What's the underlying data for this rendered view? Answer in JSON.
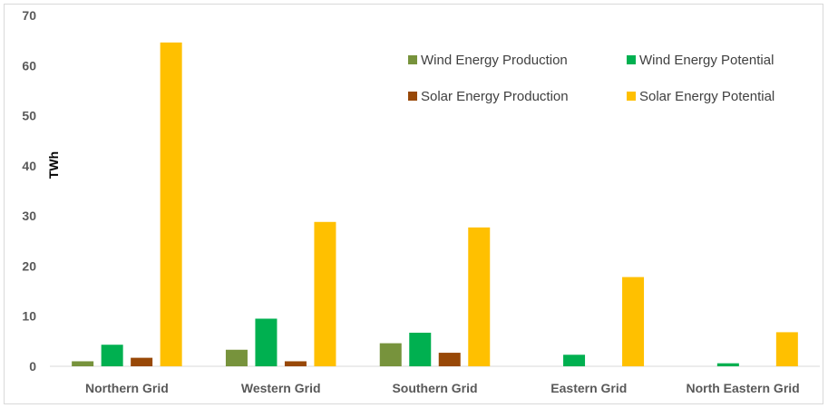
{
  "chart_data": {
    "type": "bar",
    "title": "",
    "xlabel": "",
    "ylabel": "TWh",
    "ylim": [
      0,
      70
    ],
    "yticks": [
      0,
      10,
      20,
      30,
      40,
      50,
      60,
      70
    ],
    "grid": false,
    "legend_position": "top-right",
    "categories": [
      "Northern Grid",
      "Western Grid",
      "Southern Grid",
      "Eastern Grid",
      "North Eastern Grid"
    ],
    "series": [
      {
        "name": "Wind Energy Production",
        "color": "#77933c",
        "values": [
          1.0,
          3.3,
          4.6,
          0,
          0
        ]
      },
      {
        "name": "Wind Energy Potential",
        "color": "#00b050",
        "values": [
          4.3,
          9.5,
          6.7,
          2.3,
          0.6
        ]
      },
      {
        "name": "Solar Energy Production",
        "color": "#984807",
        "values": [
          1.7,
          1.0,
          2.7,
          0,
          0
        ]
      },
      {
        "name": "Solar Energy Potential",
        "color": "#ffc000",
        "values": [
          64.6,
          28.8,
          27.7,
          17.8,
          6.8
        ]
      }
    ]
  }
}
